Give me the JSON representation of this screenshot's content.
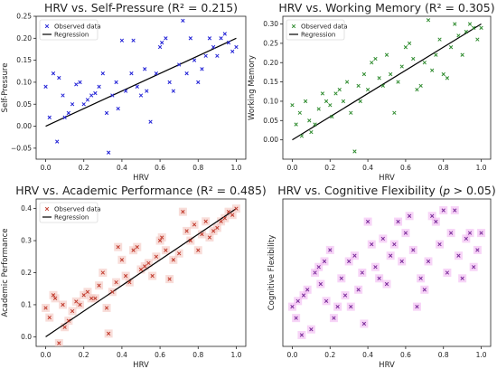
{
  "chart_data": [
    {
      "type": "scatter",
      "title": "HRV vs. Self-Pressure (R² = 0.215)",
      "xlabel": "HRV",
      "ylabel": "Self-Pressure",
      "xlim": [
        -0.05,
        1.05
      ],
      "ylim": [
        -0.075,
        0.25
      ],
      "xticks": [
        "0.0",
        "0.2",
        "0.4",
        "0.6",
        "0.8",
        "1.0"
      ],
      "xtick_values": [
        0,
        0.2,
        0.4,
        0.6,
        0.8,
        1.0
      ],
      "yticks": [
        "−0.05",
        "0.00",
        "0.05",
        "0.10",
        "0.15",
        "0.20",
        "0.25"
      ],
      "ytick_values": [
        -0.05,
        0,
        0.05,
        0.1,
        0.15,
        0.2,
        0.25
      ],
      "point_color": "#1f1fd6",
      "shade_color": "",
      "legend": {
        "position": "top-left",
        "observed": "Observed data",
        "regression": "Regression"
      },
      "regression": {
        "x": [
          0,
          1
        ],
        "y": [
          0.0,
          0.2
        ]
      },
      "points": [
        [
          0.0,
          0.09
        ],
        [
          0.02,
          0.02
        ],
        [
          0.04,
          0.12
        ],
        [
          0.06,
          -0.035
        ],
        [
          0.07,
          0.11
        ],
        [
          0.09,
          0.07
        ],
        [
          0.1,
          0.02
        ],
        [
          0.12,
          0.03
        ],
        [
          0.14,
          0.05
        ],
        [
          0.16,
          0.095
        ],
        [
          0.18,
          0.1
        ],
        [
          0.2,
          0.05
        ],
        [
          0.22,
          0.06
        ],
        [
          0.24,
          0.07
        ],
        [
          0.26,
          0.075
        ],
        [
          0.28,
          0.09
        ],
        [
          0.3,
          0.12
        ],
        [
          0.32,
          0.03
        ],
        [
          0.33,
          -0.06
        ],
        [
          0.35,
          0.07
        ],
        [
          0.37,
          0.1
        ],
        [
          0.38,
          0.04
        ],
        [
          0.4,
          0.195
        ],
        [
          0.42,
          0.08
        ],
        [
          0.45,
          0.12
        ],
        [
          0.46,
          0.195
        ],
        [
          0.48,
          0.09
        ],
        [
          0.5,
          0.07
        ],
        [
          0.52,
          0.13
        ],
        [
          0.53,
          0.08
        ],
        [
          0.55,
          0.01
        ],
        [
          0.58,
          0.12
        ],
        [
          0.6,
          0.18
        ],
        [
          0.61,
          0.19
        ],
        [
          0.63,
          0.2
        ],
        [
          0.65,
          0.1
        ],
        [
          0.67,
          0.08
        ],
        [
          0.7,
          0.14
        ],
        [
          0.72,
          0.24
        ],
        [
          0.74,
          0.12
        ],
        [
          0.76,
          0.2
        ],
        [
          0.78,
          0.15
        ],
        [
          0.8,
          0.1
        ],
        [
          0.82,
          0.13
        ],
        [
          0.84,
          0.16
        ],
        [
          0.86,
          0.2
        ],
        [
          0.88,
          0.18
        ],
        [
          0.9,
          0.16
        ],
        [
          0.92,
          0.2
        ],
        [
          0.94,
          0.21
        ],
        [
          0.96,
          0.19
        ],
        [
          0.98,
          0.17
        ],
        [
          1.0,
          0.18
        ]
      ]
    },
    {
      "type": "scatter",
      "title": "HRV vs. Working Memory (R² = 0.305)",
      "xlabel": "HRV",
      "ylabel": "Working Memory",
      "xlim": [
        -0.05,
        1.05
      ],
      "ylim": [
        -0.05,
        0.32
      ],
      "xticks": [
        "0.0",
        "0.2",
        "0.4",
        "0.6",
        "0.8",
        "1.0"
      ],
      "xtick_values": [
        0,
        0.2,
        0.4,
        0.6,
        0.8,
        1.0
      ],
      "yticks": [
        "0.00",
        "0.05",
        "0.10",
        "0.15",
        "0.20",
        "0.25",
        "0.30"
      ],
      "ytick_values": [
        0,
        0.05,
        0.1,
        0.15,
        0.2,
        0.25,
        0.3
      ],
      "point_color": "#2e8b2e",
      "shade_color": "",
      "legend": {
        "position": "top-left",
        "observed": "Observed data",
        "regression": "Regression"
      },
      "regression": {
        "x": [
          0,
          1
        ],
        "y": [
          0.0,
          0.3
        ]
      },
      "points": [
        [
          0.0,
          0.09
        ],
        [
          0.02,
          0.04
        ],
        [
          0.04,
          0.07
        ],
        [
          0.05,
          0.01
        ],
        [
          0.07,
          0.1
        ],
        [
          0.09,
          0.05
        ],
        [
          0.1,
          0.02
        ],
        [
          0.12,
          0.04
        ],
        [
          0.14,
          0.08
        ],
        [
          0.16,
          0.12
        ],
        [
          0.18,
          0.1
        ],
        [
          0.2,
          0.09
        ],
        [
          0.21,
          0.06
        ],
        [
          0.23,
          0.12
        ],
        [
          0.25,
          0.13
        ],
        [
          0.27,
          0.1
        ],
        [
          0.29,
          0.15
        ],
        [
          0.31,
          0.07
        ],
        [
          0.33,
          -0.03
        ],
        [
          0.35,
          0.14
        ],
        [
          0.36,
          0.1
        ],
        [
          0.38,
          0.17
        ],
        [
          0.4,
          0.13
        ],
        [
          0.42,
          0.2
        ],
        [
          0.44,
          0.21
        ],
        [
          0.46,
          0.16
        ],
        [
          0.48,
          0.14
        ],
        [
          0.5,
          0.22
        ],
        [
          0.52,
          0.17
        ],
        [
          0.54,
          0.07
        ],
        [
          0.56,
          0.15
        ],
        [
          0.58,
          0.19
        ],
        [
          0.6,
          0.24
        ],
        [
          0.62,
          0.25
        ],
        [
          0.64,
          0.21
        ],
        [
          0.66,
          0.13
        ],
        [
          0.68,
          0.14
        ],
        [
          0.7,
          0.2
        ],
        [
          0.72,
          0.31
        ],
        [
          0.74,
          0.18
        ],
        [
          0.76,
          0.22
        ],
        [
          0.78,
          0.26
        ],
        [
          0.8,
          0.17
        ],
        [
          0.82,
          0.16
        ],
        [
          0.84,
          0.24
        ],
        [
          0.86,
          0.3
        ],
        [
          0.88,
          0.27
        ],
        [
          0.9,
          0.22
        ],
        [
          0.92,
          0.28
        ],
        [
          0.94,
          0.3
        ],
        [
          0.96,
          0.29
        ],
        [
          0.98,
          0.26
        ],
        [
          1.0,
          0.29
        ]
      ]
    },
    {
      "type": "scatter",
      "title": "HRV vs. Academic Performance (R² = 0.485)",
      "xlabel": "HRV",
      "ylabel": "Academic Performance",
      "xlim": [
        -0.05,
        1.05
      ],
      "ylim": [
        -0.03,
        0.43
      ],
      "xticks": [
        "0.0",
        "0.2",
        "0.4",
        "0.6",
        "0.8",
        "1.0"
      ],
      "xtick_values": [
        0,
        0.2,
        0.4,
        0.6,
        0.8,
        1.0
      ],
      "yticks": [
        "0.0",
        "0.1",
        "0.2",
        "0.3",
        "0.4"
      ],
      "ytick_values": [
        0,
        0.1,
        0.2,
        0.3,
        0.4
      ],
      "point_color": "#c0392b",
      "shade_color": "#f4c6c0",
      "legend": {
        "position": "top-left",
        "observed": "Observed data",
        "regression": "Regression"
      },
      "regression": {
        "x": [
          0,
          1
        ],
        "y": [
          0.0,
          0.4
        ]
      },
      "points": [
        [
          0.0,
          0.09
        ],
        [
          0.02,
          0.06
        ],
        [
          0.04,
          0.13
        ],
        [
          0.05,
          0.12
        ],
        [
          0.07,
          -0.02
        ],
        [
          0.09,
          0.1
        ],
        [
          0.1,
          0.03
        ],
        [
          0.12,
          0.05
        ],
        [
          0.14,
          0.08
        ],
        [
          0.16,
          0.11
        ],
        [
          0.18,
          0.1
        ],
        [
          0.2,
          0.13
        ],
        [
          0.22,
          0.14
        ],
        [
          0.24,
          0.12
        ],
        [
          0.26,
          0.12
        ],
        [
          0.28,
          0.16
        ],
        [
          0.3,
          0.2
        ],
        [
          0.32,
          0.09
        ],
        [
          0.33,
          0.01
        ],
        [
          0.35,
          0.14
        ],
        [
          0.37,
          0.17
        ],
        [
          0.38,
          0.28
        ],
        [
          0.4,
          0.24
        ],
        [
          0.42,
          0.19
        ],
        [
          0.44,
          0.17
        ],
        [
          0.46,
          0.27
        ],
        [
          0.48,
          0.28
        ],
        [
          0.5,
          0.21
        ],
        [
          0.52,
          0.22
        ],
        [
          0.54,
          0.23
        ],
        [
          0.56,
          0.19
        ],
        [
          0.58,
          0.25
        ],
        [
          0.6,
          0.3
        ],
        [
          0.61,
          0.31
        ],
        [
          0.63,
          0.27
        ],
        [
          0.65,
          0.18
        ],
        [
          0.67,
          0.24
        ],
        [
          0.7,
          0.26
        ],
        [
          0.72,
          0.39
        ],
        [
          0.74,
          0.33
        ],
        [
          0.76,
          0.3
        ],
        [
          0.78,
          0.35
        ],
        [
          0.8,
          0.27
        ],
        [
          0.82,
          0.32
        ],
        [
          0.84,
          0.36
        ],
        [
          0.86,
          0.31
        ],
        [
          0.88,
          0.33
        ],
        [
          0.9,
          0.34
        ],
        [
          0.92,
          0.36
        ],
        [
          0.94,
          0.37
        ],
        [
          0.96,
          0.39
        ],
        [
          0.98,
          0.38
        ],
        [
          1.0,
          0.4
        ]
      ]
    },
    {
      "type": "scatter",
      "title": "HRV vs. Cognitive Flexibility (𝑝 > 0.05)",
      "xlabel": "HRV",
      "ylabel": "Cognitive Flexibility",
      "xlim": [
        -0.05,
        1.05
      ],
      "ylim": [
        -0.1,
        0.16
      ],
      "xticks": [
        "0.0",
        "0.2",
        "0.4",
        "0.6",
        "0.8",
        "1.0"
      ],
      "xtick_values": [
        0,
        0.2,
        0.4,
        0.6,
        0.8,
        1.0
      ],
      "yticks": [],
      "ytick_values": [],
      "point_color": "#7a2a9a",
      "shade_color": "#f2b8f2",
      "legend": null,
      "regression": null,
      "points": [
        [
          0.0,
          -0.03
        ],
        [
          0.02,
          -0.05
        ],
        [
          0.03,
          -0.02
        ],
        [
          0.05,
          -0.08
        ],
        [
          0.06,
          -0.01
        ],
        [
          0.08,
          0.0
        ],
        [
          0.1,
          -0.07
        ],
        [
          0.12,
          0.03
        ],
        [
          0.14,
          0.04
        ],
        [
          0.15,
          0.01
        ],
        [
          0.17,
          0.05
        ],
        [
          0.18,
          -0.02
        ],
        [
          0.2,
          0.07
        ],
        [
          0.22,
          -0.05
        ],
        [
          0.24,
          -0.03
        ],
        [
          0.26,
          0.02
        ],
        [
          0.28,
          -0.01
        ],
        [
          0.3,
          0.05
        ],
        [
          0.31,
          -0.03
        ],
        [
          0.33,
          0.06
        ],
        [
          0.35,
          0.0
        ],
        [
          0.37,
          0.03
        ],
        [
          0.38,
          -0.06
        ],
        [
          0.4,
          0.12
        ],
        [
          0.42,
          0.08
        ],
        [
          0.44,
          0.04
        ],
        [
          0.46,
          0.02
        ],
        [
          0.48,
          0.09
        ],
        [
          0.5,
          0.01
        ],
        [
          0.52,
          0.06
        ],
        [
          0.54,
          0.08
        ],
        [
          0.56,
          0.12
        ],
        [
          0.58,
          0.05
        ],
        [
          0.6,
          0.1
        ],
        [
          0.62,
          0.13
        ],
        [
          0.64,
          0.07
        ],
        [
          0.66,
          -0.03
        ],
        [
          0.68,
          0.02
        ],
        [
          0.7,
          0.0
        ],
        [
          0.72,
          0.05
        ],
        [
          0.74,
          0.13
        ],
        [
          0.76,
          0.12
        ],
        [
          0.78,
          0.08
        ],
        [
          0.8,
          0.14
        ],
        [
          0.82,
          0.03
        ],
        [
          0.84,
          0.1
        ],
        [
          0.86,
          0.14
        ],
        [
          0.88,
          0.06
        ],
        [
          0.9,
          0.02
        ],
        [
          0.92,
          0.09
        ],
        [
          0.94,
          0.1
        ],
        [
          0.96,
          0.04
        ],
        [
          0.98,
          0.07
        ],
        [
          1.0,
          0.1
        ]
      ]
    }
  ]
}
